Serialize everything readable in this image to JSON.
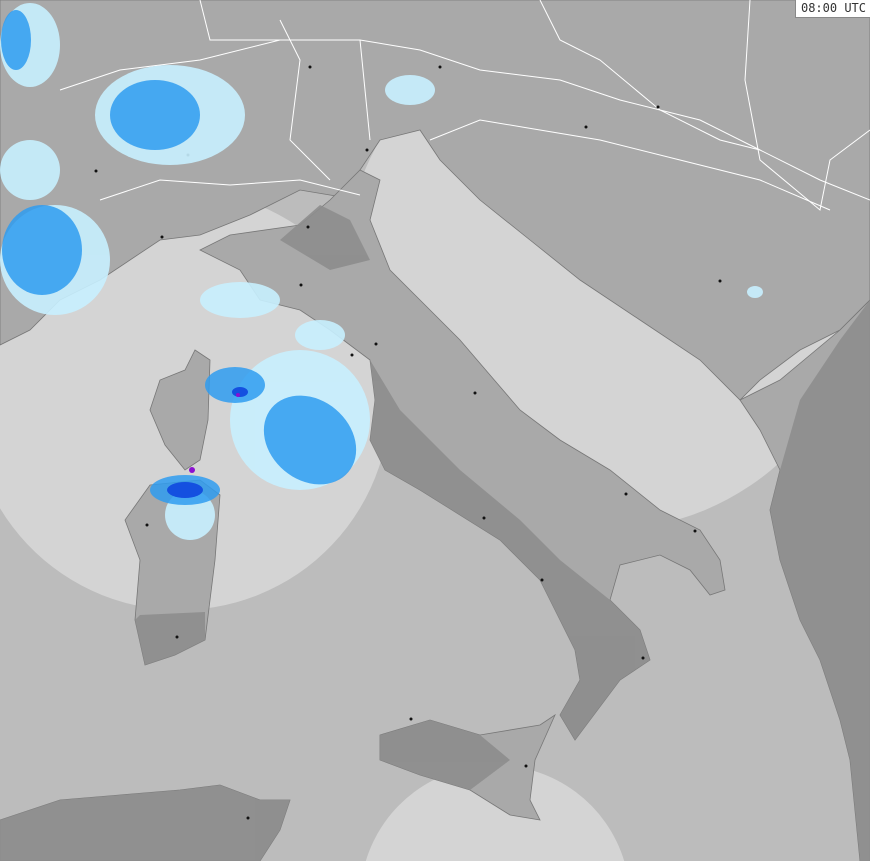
{
  "map": {
    "timestamp": "08:00 UTC",
    "colors": {
      "sea_outside_coverage": "#bcbcbc",
      "sea_in_coverage": "#d4d4d4",
      "land_in_coverage": "#a9a9a9",
      "land_outside_coverage": "#8d8d8d",
      "borders": "#ffffff",
      "precip_light": "#c8f0ff",
      "precip_moderate": "#2f9cf0",
      "precip_heavy": "#1450e0",
      "precip_intense": "#8a10d0"
    }
  }
}
